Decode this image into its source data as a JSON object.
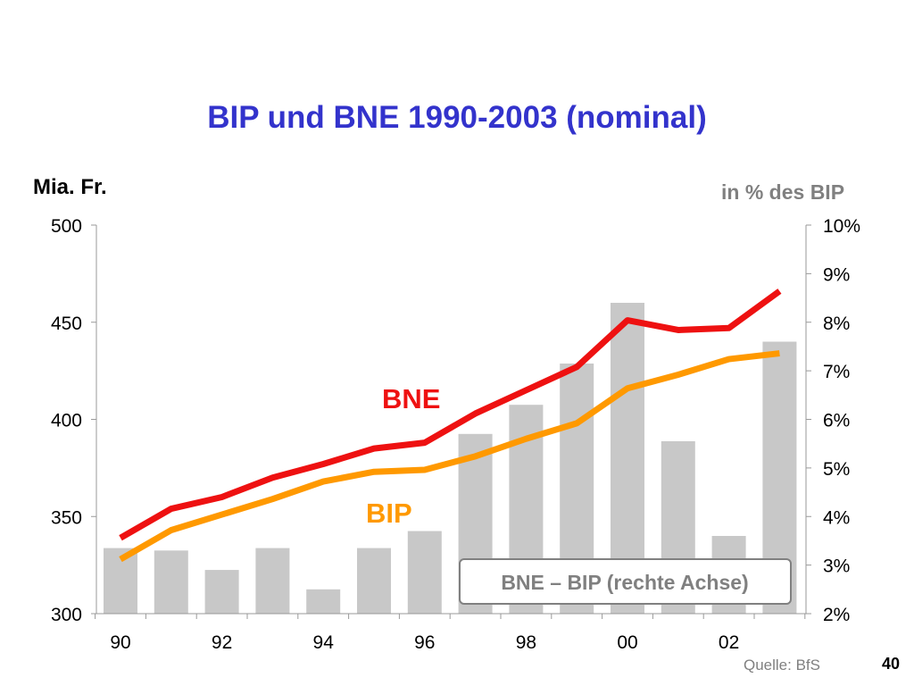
{
  "title": "BIP und BNE 1990-2003 (nominal)",
  "left_axis_unit": "Mia. Fr.",
  "right_axis_unit": "in % des BIP",
  "source": "Quelle: BfS",
  "page_number": "40",
  "colors": {
    "title": "#3333cc",
    "bne_line": "#ee1111",
    "bip_line": "#ff9900",
    "bars": "#c8c8c8"
  },
  "chart_data": {
    "type": "bar+line",
    "x": [
      1990,
      1991,
      1992,
      1993,
      1994,
      1995,
      1996,
      1997,
      1998,
      1999,
      2000,
      2001,
      2002,
      2003
    ],
    "x_tick_values": [
      1990,
      1992,
      1994,
      1996,
      1998,
      2000,
      2002
    ],
    "x_tick_labels": [
      "90",
      "92",
      "94",
      "96",
      "98",
      "00",
      "02"
    ],
    "left_axis": {
      "label": "Mia. Fr.",
      "range": [
        300,
        500
      ],
      "ticks": [
        300,
        350,
        400,
        450,
        500
      ],
      "tick_labels": [
        "300",
        "350",
        "400",
        "450",
        "500"
      ]
    },
    "right_axis": {
      "label": "in % des BIP",
      "range": [
        2,
        10
      ],
      "ticks": [
        2,
        3,
        4,
        5,
        6,
        7,
        8,
        9,
        10
      ],
      "tick_labels": [
        "2%",
        "3%",
        "4%",
        "5%",
        "6%",
        "7%",
        "8%",
        "9%",
        "10%"
      ]
    },
    "series": [
      {
        "name": "BNE",
        "kind": "line",
        "axis": "left",
        "values": [
          339,
          354,
          360,
          370,
          377,
          385,
          388,
          403,
          415,
          427,
          451,
          446,
          447,
          466
        ]
      },
      {
        "name": "BIP",
        "kind": "line",
        "axis": "left",
        "values": [
          328,
          343,
          351,
          359,
          368,
          373,
          374,
          381,
          390,
          398,
          416,
          423,
          431,
          434
        ]
      },
      {
        "name": "BNE – BIP (rechte Achse)",
        "kind": "bar",
        "axis": "right",
        "values": [
          3.35,
          3.3,
          2.9,
          3.35,
          2.5,
          3.35,
          3.7,
          5.7,
          6.3,
          7.15,
          8.4,
          5.55,
          3.6,
          7.6
        ]
      }
    ],
    "labels": {
      "bne": "BNE",
      "bip": "BIP",
      "legend": "BNE – BIP (rechte Achse)"
    }
  }
}
